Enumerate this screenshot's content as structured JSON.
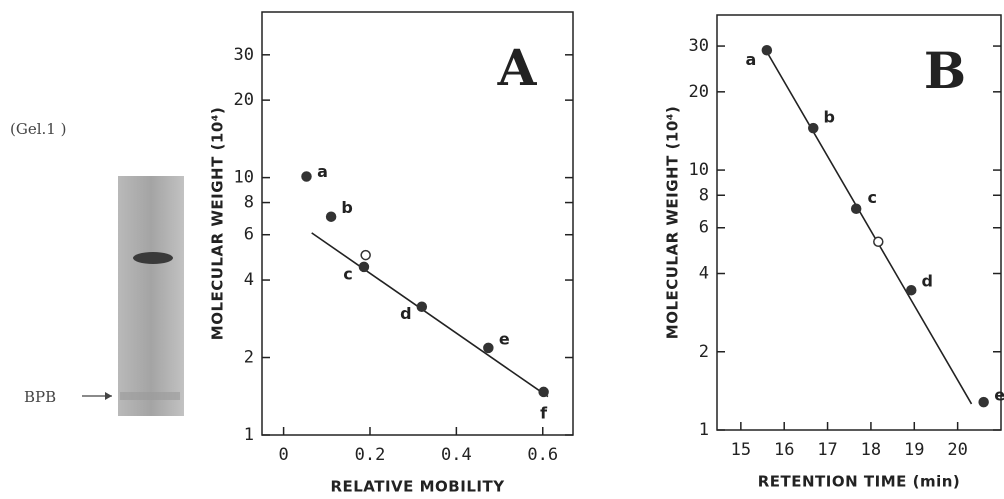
{
  "gel": {
    "caption": "(Gel.1 )",
    "marker": "BPB"
  },
  "chart_data": [
    {
      "type": "scatter",
      "title": "A",
      "x_label": "RELATIVE MOBILITY",
      "y_label": "MOLECULAR WEIGHT (10⁴)",
      "log_y": true,
      "xlim": [
        -0.05,
        0.67
      ],
      "ylim": [
        1,
        44
      ],
      "xticks": [
        0,
        0.2,
        0.4,
        0.6
      ],
      "yticks": [
        1,
        2,
        4,
        6,
        8,
        10,
        20,
        30
      ],
      "series": [
        {
          "color": "#333333",
          "x": [
            0.053,
            0.11,
            0.186,
            0.19,
            0.32,
            0.474,
            0.602
          ],
          "values": [
            10.1,
            7.05,
            4.5,
            5.0,
            3.15,
            2.18,
            1.47
          ],
          "point_labels": [
            "a",
            "b",
            "c",
            null,
            "d",
            "e",
            "f"
          ],
          "open": [
            false,
            false,
            false,
            true,
            false,
            false,
            false
          ]
        }
      ],
      "fit_line": {
        "x": [
          0.065,
          0.612
        ],
        "values": [
          6.1,
          1.41
        ]
      }
    },
    {
      "type": "scatter",
      "title": "B",
      "x_label": "RETENTION TIME (min)",
      "y_label": "MOLECULAR WEIGHT (10⁴)",
      "log_y": true,
      "xlim": [
        14.45,
        21
      ],
      "ylim": [
        1,
        39.5
      ],
      "xticks": [
        15,
        16,
        17,
        18,
        19,
        20
      ],
      "yticks": [
        1,
        2,
        4,
        6,
        8,
        10,
        20,
        30
      ],
      "series": [
        {
          "color": "#333333",
          "x": [
            15.6,
            16.67,
            17.66,
            18.17,
            18.93,
            20.6
          ],
          "values": [
            28.9,
            14.5,
            7.1,
            5.3,
            3.45,
            1.28
          ],
          "point_labels": [
            "a",
            "b",
            "c",
            null,
            "d",
            "e"
          ],
          "open": [
            false,
            false,
            false,
            true,
            false,
            false
          ]
        }
      ],
      "fit_line": {
        "x": [
          15.6,
          20.32
        ],
        "values": [
          28.5,
          1.26
        ]
      }
    }
  ]
}
